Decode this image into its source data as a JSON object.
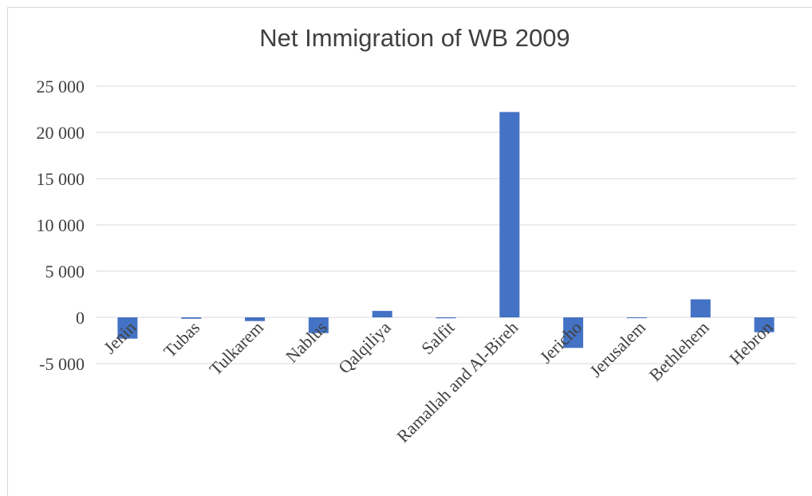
{
  "chart_data": {
    "type": "bar",
    "title": "Net Immigration of WB 2009",
    "categories": [
      "Jenin",
      "Tubas",
      "Tulkarem",
      "Nablus",
      "Qalqiliya",
      "Salfit",
      "Ramallah and Al-Bireh",
      "Jericho",
      "Jerusalem",
      "Bethlehem",
      "Hebron"
    ],
    "values": [
      -2300,
      -150,
      -400,
      -1700,
      700,
      -100,
      22200,
      -3300,
      0,
      1950,
      -1600
    ],
    "ylim": [
      -5000,
      25000
    ],
    "yticks": [
      25000,
      20000,
      15000,
      10000,
      5000,
      0,
      -5000
    ],
    "ytick_labels": [
      "25 000",
      "20 000",
      "15 000",
      "10 000",
      "5 000",
      "0",
      "-5 000"
    ],
    "grid": true,
    "colors": {
      "bar": "#4472c4",
      "grid": "#d9d9d9"
    }
  }
}
